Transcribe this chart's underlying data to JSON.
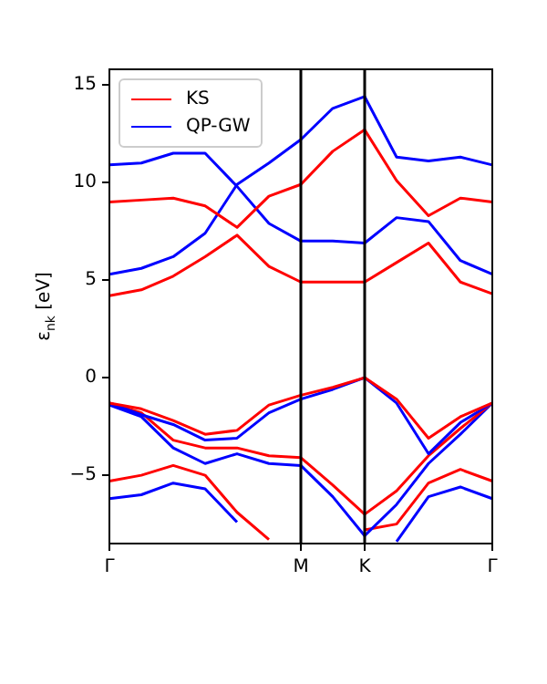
{
  "chart_data": {
    "type": "line",
    "ylabel": "ε$_{nk}$ [eV]",
    "categories": [
      "Γ",
      null,
      null,
      null,
      null,
      null,
      "M",
      null,
      "K",
      null,
      null,
      null,
      "Γ"
    ],
    "ylim": [
      -8.5,
      15.8
    ],
    "yticks": [
      -5,
      0,
      5,
      10,
      15
    ],
    "grid": false,
    "legend": "top left",
    "marker": "none",
    "line_style": "solid",
    "ref_lines": [
      {
        "axis": "x",
        "value": "M",
        "color": "#000000"
      },
      {
        "axis": "x",
        "value": "K",
        "color": "#000000"
      }
    ],
    "series": [
      {
        "name": "KS",
        "color": "#ff0000",
        "values": [
          9.0,
          9.1,
          9.2,
          8.8,
          7.7,
          9.3,
          9.9,
          11.6,
          12.7,
          10.1,
          8.3,
          9.2,
          9.0
        ]
      },
      {
        "name": "QP-GW",
        "color": "#0000ff",
        "values": [
          10.9,
          11.0,
          11.5,
          11.5,
          9.8,
          7.9,
          7.0,
          7.0,
          6.9,
          8.2,
          8.0,
          6.0,
          5.3
        ]
      },
      {
        "color": "#ff0000",
        "values": [
          4.2,
          4.5,
          5.2,
          6.2,
          7.3,
          5.7,
          4.9,
          4.9,
          4.9,
          5.9,
          6.9,
          4.9,
          4.3
        ]
      },
      {
        "color": "#0000ff",
        "values": [
          5.3,
          5.6,
          6.2,
          7.4,
          9.9,
          11.0,
          12.2,
          13.8,
          14.4,
          11.3,
          11.1,
          11.3,
          10.9
        ]
      },
      {
        "color": "#ff0000",
        "values": [
          -1.3,
          -1.6,
          -2.2,
          -2.9,
          -2.7,
          -1.4,
          -0.9,
          -0.5,
          0,
          -1.1,
          -3.1,
          -2.0,
          -1.3
        ]
      },
      {
        "color": "#0000ff",
        "values": [
          -1.3,
          -1.9,
          -2.4,
          -3.2,
          -3.1,
          -1.8,
          -1.1,
          -0.6,
          0,
          -1.3,
          -3.9,
          -2.3,
          -1.3
        ]
      },
      {
        "color": "#ff0000",
        "values": [
          -1.3,
          -1.8,
          -3.2,
          -3.6,
          -3.6,
          -4.0,
          -4.1,
          -5.5,
          -7.0,
          -5.8,
          -4.0,
          -2.6,
          -1.3
        ]
      },
      {
        "color": "#0000ff",
        "values": [
          -1.4,
          -2.0,
          -3.6,
          -4.4,
          -3.9,
          -4.4,
          -4.5,
          -6.1,
          -8.1,
          -6.5,
          -4.4,
          -2.9,
          -1.3
        ]
      },
      {
        "color": "#ff0000",
        "values": [
          -5.3,
          -5.0,
          -4.5,
          -5.0,
          -6.9,
          -8.3,
          null,
          null,
          -7.8,
          -7.5,
          -5.4,
          -4.7,
          -5.3
        ]
      },
      {
        "color": "#0000ff",
        "values": [
          -6.2,
          -6.0,
          -5.4,
          -5.7,
          -7.4,
          null,
          null,
          null,
          null,
          -8.4,
          -6.1,
          -5.6,
          -6.2
        ]
      }
    ]
  }
}
